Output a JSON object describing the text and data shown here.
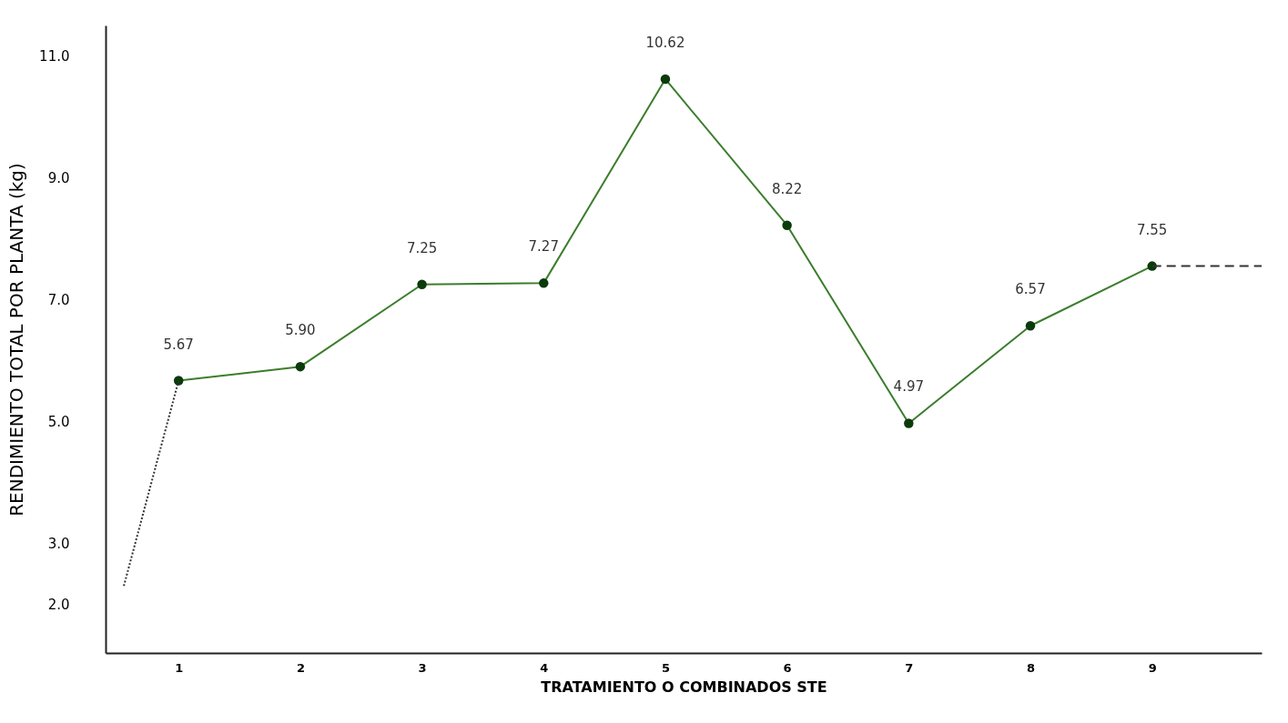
{
  "chart_data": {
    "type": "line",
    "xlabel": "TRATAMIENTO O COMBINADOS STE",
    "ylabel": "RENDIMIENTO TOTAL POR PLANTA (kg)",
    "xlim": [
      0.4,
      9.9
    ],
    "xticks": [
      1,
      2,
      3,
      4,
      5,
      6,
      7,
      8,
      9
    ],
    "ylim": [
      1.2,
      11.5
    ],
    "yticks": [
      {
        "value": 2,
        "label": "2.0"
      },
      {
        "value": 3,
        "label": "3.0"
      },
      {
        "value": 5,
        "label": "5.0"
      },
      {
        "value": 7,
        "label": "7.0"
      },
      {
        "value": 9,
        "label": "9.0"
      },
      {
        "value": 11,
        "label": "11.0"
      }
    ],
    "series": [
      {
        "color": "#3b7d2c",
        "x": [
          1,
          2,
          3,
          4,
          5,
          6,
          7,
          8,
          9
        ],
        "values": [
          5.67,
          5.9,
          7.25,
          7.27,
          10.62,
          8.22,
          4.97,
          6.57,
          7.55
        ],
        "value_labels": [
          "5.67",
          "5.90",
          "7.25",
          "7.27",
          "10.62",
          "8.22",
          "4.97",
          "6.57",
          "7.55"
        ]
      },
      {
        "color": "#333333",
        "x": [
          0.55,
          1
        ],
        "values": [
          2.3,
          5.67
        ],
        "line_style": "dotted",
        "marker": "none"
      },
      {
        "color": "#333333",
        "x": [
          9,
          9.9
        ],
        "values": [
          7.55,
          7.55
        ],
        "line_style": "dashed",
        "marker": "none"
      }
    ],
    "marker": "circle",
    "line_style": "solid",
    "grid": false
  }
}
